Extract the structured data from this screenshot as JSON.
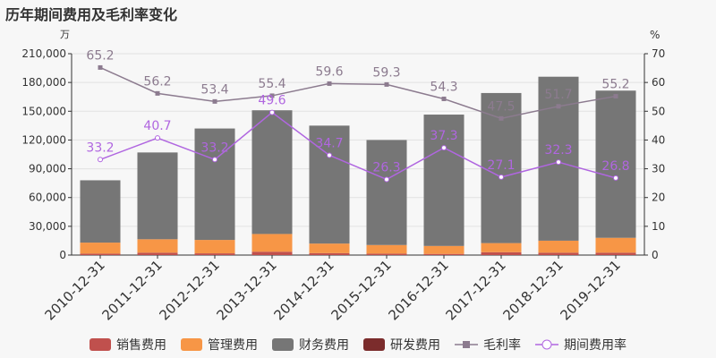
{
  "chart_data": {
    "type": "bar",
    "title": "历年期间费用及毛利率变化",
    "categories": [
      "2010-12-31",
      "2011-12-31",
      "2012-12-31",
      "2013-12-31",
      "2014-12-31",
      "2015-12-31",
      "2016-12-31",
      "2017-12-31",
      "2018-12-31",
      "2019-12-31"
    ],
    "stacked": true,
    "y_left": {
      "unit": "万",
      "ylim": [
        0,
        210000
      ],
      "ticks": [
        "0",
        "30,000",
        "60,000",
        "90,000",
        "120,000",
        "150,000",
        "180,000",
        "210,000"
      ],
      "tick_values": [
        0,
        30000,
        60000,
        90000,
        120000,
        150000,
        180000,
        210000
      ]
    },
    "y_right": {
      "unit": "%",
      "ylim": [
        0,
        70
      ],
      "ticks": [
        "0",
        "10",
        "20",
        "30",
        "40",
        "50",
        "60",
        "70"
      ],
      "tick_values": [
        0,
        10,
        20,
        30,
        40,
        50,
        60,
        70
      ]
    },
    "series": [
      {
        "name": "销售费用",
        "kind": "bar",
        "color": "#c0504d",
        "values": [
          1500,
          2500,
          1800,
          3500,
          2000,
          1500,
          1200,
          3000,
          2500,
          2500
        ]
      },
      {
        "name": "管理费用",
        "kind": "bar",
        "color": "#f79646",
        "values": [
          11500,
          14000,
          14000,
          18500,
          10000,
          9000,
          8300,
          9500,
          12500,
          15500
        ]
      },
      {
        "name": "财务费用",
        "kind": "bar",
        "color": "#767676",
        "values": [
          65000,
          90500,
          116200,
          129000,
          123000,
          109500,
          137000,
          156500,
          171000,
          153500
        ]
      },
      {
        "name": "研发费用",
        "kind": "bar",
        "color": "#7b2c2c",
        "values": [
          0,
          0,
          0,
          0,
          0,
          0,
          0,
          0,
          0,
          0
        ]
      },
      {
        "name": "毛利率",
        "kind": "line",
        "axis": "right",
        "color": "#8c7b8f",
        "values": [
          65.2,
          56.2,
          53.4,
          55.4,
          59.6,
          59.3,
          54.3,
          47.5,
          51.7,
          55.2
        ],
        "labels": [
          "65.2",
          "56.2",
          "53.4",
          "55.4",
          "59.6",
          "59.3",
          "54.3",
          "47.5",
          "51.7",
          "55.2"
        ]
      },
      {
        "name": "期间费用率",
        "kind": "line",
        "axis": "right",
        "color": "#b066e0",
        "values": [
          33.2,
          40.7,
          33.2,
          49.6,
          34.7,
          26.3,
          37.3,
          27.1,
          32.3,
          26.8
        ],
        "labels": [
          "33.2",
          "40.7",
          "33.2",
          "49.6",
          "34.7",
          "26.3",
          "37.3",
          "27.1",
          "32.3",
          "26.8"
        ]
      }
    ],
    "legend_position": "bottom",
    "grid": true
  }
}
